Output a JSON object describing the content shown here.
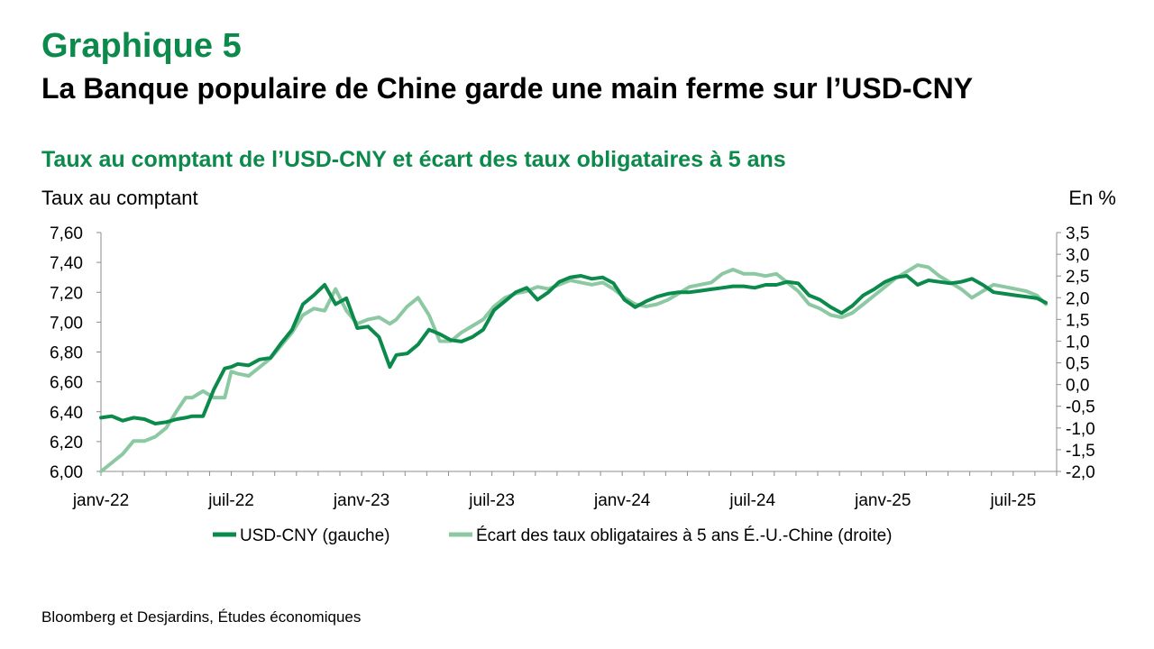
{
  "header": {
    "figure_number": "Graphique 5",
    "title": "La Banque populaire de Chine garde une main ferme sur l’USD-CNY"
  },
  "footer": {
    "source": "Bloomberg et Desjardins, Études économiques"
  },
  "colors": {
    "title_green": "#0b8a4b",
    "usdcny": "#0b8a4b",
    "spread": "#8cc9a3"
  },
  "chart_data": {
    "type": "line",
    "title": "Taux au comptant de l’USD-CNY et écart des taux obligataires à 5 ans",
    "ylabel_left": "Taux au comptant",
    "ylabel_right": "En %",
    "ylim_left": [
      6.0,
      7.6
    ],
    "ylim_right": [
      -2.0,
      3.5
    ],
    "yticks_left": [
      "6,00",
      "6,20",
      "6,40",
      "6,60",
      "6,80",
      "7,00",
      "7,20",
      "7,40",
      "7,60"
    ],
    "yticks_left_values": [
      6.0,
      6.2,
      6.4,
      6.6,
      6.8,
      7.0,
      7.2,
      7.4,
      7.6
    ],
    "yticks_right": [
      "-2,0",
      "-1,5",
      "-1,0",
      "-0,5",
      "0,0",
      "0,5",
      "1,0",
      "1,5",
      "2,0",
      "2,5",
      "3,0",
      "3,5"
    ],
    "yticks_right_values": [
      -2.0,
      -1.5,
      -1.0,
      -0.5,
      0.0,
      0.5,
      1.0,
      1.5,
      2.0,
      2.5,
      3.0,
      3.5
    ],
    "xlim": [
      0,
      44
    ],
    "xticks": [
      "janv-22",
      "juil-22",
      "janv-23",
      "juil-23",
      "janv-24",
      "juil-24",
      "janv-25",
      "juil-25"
    ],
    "xticks_values": [
      0,
      6,
      12,
      18,
      24,
      30,
      36,
      42
    ],
    "legend_position": "bottom",
    "series": [
      {
        "name": "USD-CNY (gauche)",
        "axis": "left",
        "x": [
          0,
          0.5,
          1,
          1.5,
          2,
          2.5,
          3,
          3.5,
          3.9,
          4.2,
          4.7,
          5.2,
          5.7,
          6,
          6.3,
          6.8,
          7.3,
          7.8,
          8.3,
          8.8,
          9.3,
          9.8,
          10.3,
          10.8,
          11.3,
          11.8,
          12.3,
          12.8,
          13.3,
          13.6,
          14.1,
          14.6,
          15.1,
          15.6,
          16.1,
          16.6,
          17.1,
          17.6,
          18.1,
          18.6,
          19.1,
          19.6,
          20.1,
          20.6,
          21.1,
          21.6,
          22.1,
          22.6,
          23.1,
          23.6,
          24.1,
          24.6,
          25.1,
          25.6,
          26.1,
          26.6,
          27.1,
          27.6,
          28.1,
          28.6,
          29.1,
          29.6,
          30.1,
          30.6,
          31.1,
          31.6,
          32.1,
          32.6,
          33.1,
          33.6,
          34.1,
          34.6,
          35.1,
          35.6,
          36.1,
          36.6,
          37.1,
          37.6,
          38.1,
          38.6,
          39.1,
          39.6,
          40.1,
          40.6,
          41.1,
          41.6,
          42.1,
          42.6,
          43.1,
          43.5
        ],
        "values": [
          6.36,
          6.37,
          6.34,
          6.36,
          6.35,
          6.32,
          6.33,
          6.35,
          6.36,
          6.37,
          6.37,
          6.55,
          6.69,
          6.7,
          6.72,
          6.71,
          6.75,
          6.76,
          6.86,
          6.95,
          7.12,
          7.18,
          7.25,
          7.12,
          7.16,
          6.96,
          6.97,
          6.9,
          6.7,
          6.78,
          6.79,
          6.85,
          6.95,
          6.92,
          6.88,
          6.87,
          6.9,
          6.95,
          7.08,
          7.14,
          7.2,
          7.23,
          7.15,
          7.2,
          7.27,
          7.3,
          7.31,
          7.29,
          7.3,
          7.26,
          7.15,
          7.1,
          7.14,
          7.17,
          7.19,
          7.2,
          7.2,
          7.21,
          7.22,
          7.23,
          7.24,
          7.24,
          7.23,
          7.25,
          7.25,
          7.27,
          7.26,
          7.18,
          7.15,
          7.1,
          7.06,
          7.11,
          7.18,
          7.22,
          7.27,
          7.3,
          7.31,
          7.25,
          7.28,
          7.27,
          7.26,
          7.27,
          7.29,
          7.25,
          7.2,
          7.19,
          7.18,
          7.17,
          7.16,
          7.13
        ]
      },
      {
        "name": "Écart des taux obligataires à 5 ans É.-U.-Chine (droite)",
        "axis": "right",
        "x": [
          0,
          0.5,
          1,
          1.5,
          2,
          2.5,
          3,
          3.5,
          3.9,
          4.2,
          4.7,
          5.2,
          5.7,
          6,
          6.3,
          6.8,
          7.3,
          7.8,
          8.3,
          8.8,
          9.3,
          9.8,
          10.3,
          10.8,
          11.3,
          11.8,
          12.3,
          12.8,
          13.3,
          13.6,
          14.1,
          14.6,
          15.1,
          15.6,
          16.1,
          16.6,
          17.1,
          17.6,
          18.1,
          18.6,
          19.1,
          19.6,
          20.1,
          20.6,
          21.1,
          21.6,
          22.1,
          22.6,
          23.1,
          23.6,
          24.1,
          24.6,
          25.1,
          25.6,
          26.1,
          26.6,
          27.1,
          27.6,
          28.1,
          28.6,
          29.1,
          29.6,
          30.1,
          30.6,
          31.1,
          31.6,
          32.1,
          32.6,
          33.1,
          33.6,
          34.1,
          34.6,
          35.1,
          35.6,
          36.1,
          36.6,
          37.1,
          37.6,
          38.1,
          38.6,
          39.1,
          39.6,
          40.1,
          40.6,
          41.1,
          41.6,
          42.1,
          42.6,
          43.1,
          43.5
        ],
        "values": [
          -2.0,
          -1.8,
          -1.6,
          -1.3,
          -1.3,
          -1.2,
          -1.0,
          -0.6,
          -0.3,
          -0.3,
          -0.15,
          -0.3,
          -0.3,
          0.3,
          0.25,
          0.2,
          0.4,
          0.6,
          0.9,
          1.2,
          1.6,
          1.75,
          1.7,
          2.2,
          1.7,
          1.4,
          1.5,
          1.55,
          1.4,
          1.5,
          1.8,
          2.0,
          1.6,
          1.0,
          1.0,
          1.2,
          1.35,
          1.5,
          1.8,
          2.0,
          2.1,
          2.15,
          2.25,
          2.2,
          2.3,
          2.4,
          2.35,
          2.3,
          2.35,
          2.2,
          2.0,
          1.85,
          1.8,
          1.85,
          1.95,
          2.1,
          2.25,
          2.3,
          2.35,
          2.55,
          2.65,
          2.55,
          2.55,
          2.5,
          2.55,
          2.35,
          2.15,
          1.85,
          1.75,
          1.6,
          1.55,
          1.65,
          1.85,
          2.05,
          2.25,
          2.45,
          2.6,
          2.75,
          2.7,
          2.5,
          2.35,
          2.2,
          2.0,
          2.15,
          2.3,
          2.25,
          2.2,
          2.15,
          2.05,
          1.85
        ]
      }
    ]
  }
}
